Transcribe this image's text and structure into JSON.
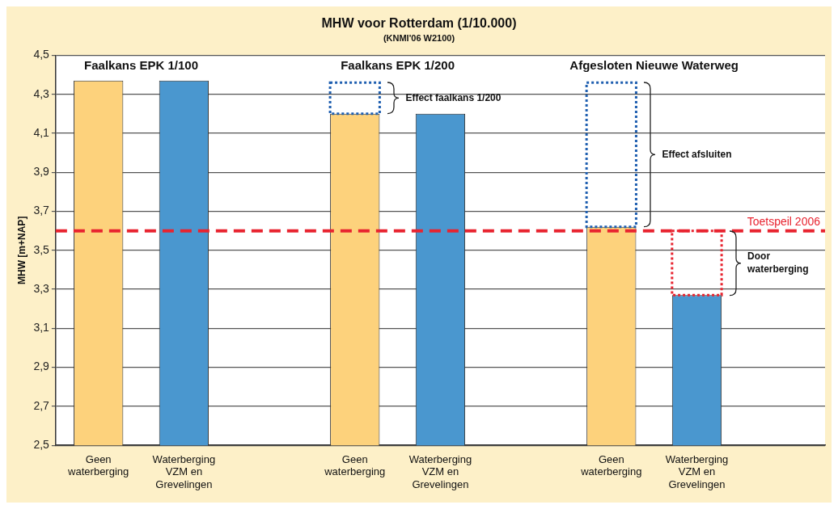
{
  "chart_data": {
    "type": "bar",
    "title": "MHW voor Rotterdam (1/10.000)",
    "subtitle": "(KNMI'06 W2100)",
    "ylabel": "MHW [m+NAP]",
    "categories": [
      "Geen\nwaterberging",
      "Waterberging\nVZM en\nGrevelingen",
      null,
      "Geen\nwaterberging",
      "Waterberging\nVZM en\nGrevelingen",
      null,
      "Geen\nwaterberging",
      "Waterberging\nVZM en\nGrevelingen",
      null
    ],
    "series": [
      {
        "colors": [
          "#fdd27c",
          "#4a97cf",
          null,
          "#fdd27c",
          "#4a97cf",
          null,
          "#fdd27c",
          "#4a97cf",
          null
        ],
        "values": [
          4.37,
          4.37,
          null,
          4.2,
          4.2,
          null,
          3.62,
          3.27,
          null
        ]
      },
      {
        "base": [
          null,
          null,
          null,
          4.2,
          null,
          null,
          3.62,
          3.27,
          null
        ],
        "colors": [
          null,
          null,
          null,
          "#1f5fb0",
          null,
          null,
          "#1f5fb0",
          "#e8232f",
          null
        ],
        "values": [
          null,
          null,
          null,
          0.16,
          null,
          null,
          0.74,
          0.33,
          null
        ],
        "line_style": "dotted"
      }
    ],
    "ylim": [
      2.5,
      4.5
    ],
    "yticks": [
      {
        "value": 2.5,
        "label": "2,5"
      },
      {
        "value": 2.7,
        "label": "2,7"
      },
      {
        "value": 2.9,
        "label": "2,9"
      },
      {
        "value": 3.1,
        "label": "3,1"
      },
      {
        "value": 3.3,
        "label": "3,3"
      },
      {
        "value": 3.5,
        "label": "3,5"
      },
      {
        "value": 3.7,
        "label": "3,7"
      },
      {
        "value": 3.9,
        "label": "3,9"
      },
      {
        "value": 4.1,
        "label": "4,1"
      },
      {
        "value": 4.3,
        "label": "4,3"
      },
      {
        "value": 4.5,
        "label": "4,5"
      }
    ],
    "grid": "y",
    "legend": false,
    "ref_lines": [
      {
        "axis": "y",
        "value": 3.6,
        "label": "Toetspeil 2006",
        "color": "#e8232f",
        "line_style": "dashed"
      }
    ],
    "annotations": [
      "Faalkans EPK 1/100",
      "Faalkans EPK 1/200",
      "Afgesloten Nieuwe Waterweg",
      "Effect faalkans 1/200",
      "Effect afsluiten",
      "Door\nwaterberging"
    ]
  }
}
